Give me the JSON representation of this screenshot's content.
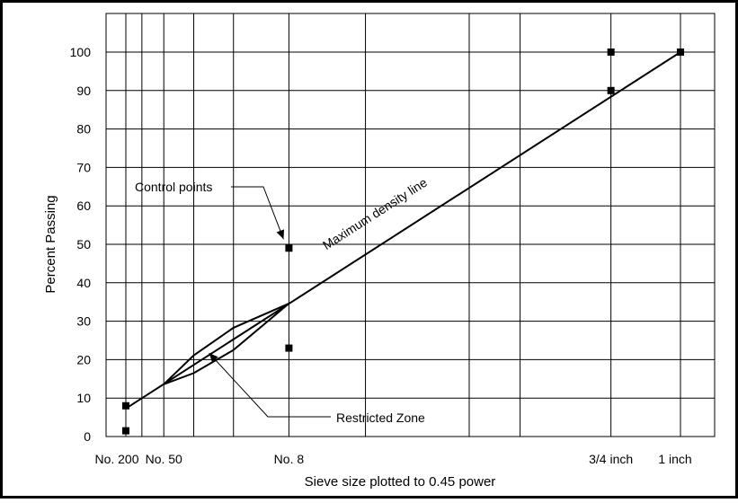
{
  "chart_data": {
    "type": "line",
    "title": "",
    "xlabel": "Sieve size plotted to 0.45 power",
    "ylabel": "Percent Passing",
    "x_scale": "power-0.45",
    "ylim": [
      0,
      100
    ],
    "y_ticks": [
      0,
      10,
      20,
      30,
      40,
      50,
      60,
      70,
      80,
      90,
      100
    ],
    "grid": true,
    "sieve_sizes_mm": [
      0.075,
      0.15,
      0.3,
      0.6,
      1.18,
      2.36,
      4.75,
      9.5,
      12.5,
      19,
      25
    ],
    "x_tick_labels": [
      {
        "label": "No. 200",
        "size_mm": 0.075
      },
      {
        "label": "No. 50",
        "size_mm": 0.3
      },
      {
        "label": "No. 8",
        "size_mm": 2.36
      },
      {
        "label": "3/4 inch",
        "size_mm": 19
      },
      {
        "label": "1 inch",
        "size_mm": 25
      }
    ],
    "series": [
      {
        "role": "max-density-line",
        "points": [
          [
            0.075,
            7.3
          ],
          [
            25,
            100
          ]
        ]
      },
      {
        "role": "restricted-zone-upper",
        "points": [
          [
            0.3,
            13.6
          ],
          [
            0.6,
            21.1
          ],
          [
            1.18,
            28.3
          ],
          [
            2.36,
            34.6
          ]
        ]
      },
      {
        "role": "restricted-zone-lower",
        "points": [
          [
            0.3,
            13.6
          ],
          [
            0.6,
            16.5
          ],
          [
            1.18,
            22.5
          ],
          [
            2.36,
            34.6
          ]
        ]
      },
      {
        "role": "control-points",
        "points": [
          [
            0.075,
            8
          ],
          [
            0.075,
            1.5
          ],
          [
            2.36,
            49
          ],
          [
            2.36,
            23
          ],
          [
            19,
            100
          ],
          [
            19,
            90
          ],
          [
            25,
            100
          ]
        ]
      }
    ],
    "annotations": [
      {
        "text": "Maximum density line",
        "at": [
          5.2,
          57
        ]
      },
      {
        "text": "Control points",
        "target": [
          2.36,
          49
        ]
      },
      {
        "text": "Restricted Zone",
        "target": [
          0.85,
          21
        ]
      }
    ]
  }
}
